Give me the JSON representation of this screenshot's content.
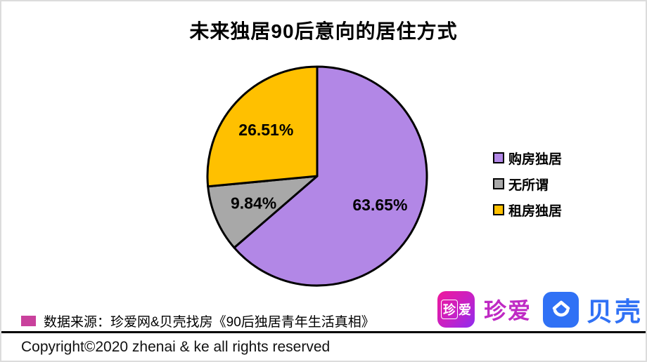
{
  "title": "未来独居90后意向的居住方式",
  "chart_data": {
    "type": "pie",
    "title": "未来独居90后意向的居住方式",
    "categories": [
      "购房独居",
      "无所谓",
      "租房独居"
    ],
    "values": [
      63.65,
      9.84,
      26.51
    ],
    "labels": [
      "63.65%",
      "9.84%",
      "26.51%"
    ],
    "colors": [
      "#b287e6",
      "#a8a8a8",
      "#ffc000"
    ],
    "start_angle_deg": 0,
    "direction": "clockwise",
    "slice_border_color": "#000000",
    "legend_position": "right"
  },
  "legend": {
    "items": [
      {
        "label": "购房独居",
        "color": "#b287e6"
      },
      {
        "label": "无所谓",
        "color": "#a8a8a8"
      },
      {
        "label": "租房独居",
        "color": "#ffc000"
      }
    ]
  },
  "source": {
    "bullet_color": "#c9419c",
    "text": "数据来源：珍爱网&贝壳找房《90后独居青年生活真相》"
  },
  "branding": {
    "zhenai_icon_char_boxed": "珍",
    "zhenai_icon_char": "爱",
    "zhenai_wordmark": "珍爱",
    "zhenai_color": "#bf2ac4",
    "beike_wordmark": "贝壳",
    "beike_color": "#3071f5"
  },
  "footer": {
    "copyright": "Copyright©2020 zhenai & ke all rights reserved"
  }
}
